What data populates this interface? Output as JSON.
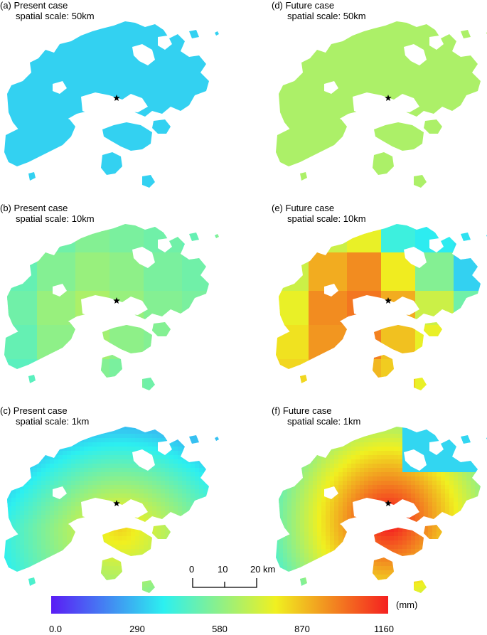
{
  "colorbar": {
    "ticks": [
      "0.0",
      "290",
      "580",
      "870",
      "1160"
    ],
    "unit": "(mm)",
    "stops": [
      "#5a1cf5",
      "#2cf0f0",
      "#f0f020",
      "#f52020"
    ],
    "min": 0,
    "max": 1160
  },
  "scalebar": {
    "labels": [
      "0",
      "10",
      "20"
    ],
    "unit": "km"
  },
  "panels": [
    {
      "id": "a",
      "title": "(a) Present case",
      "subtitle": "spatial scale: 50km",
      "value": 330,
      "mode": "uniform"
    },
    {
      "id": "d",
      "title": "(d) Future case",
      "subtitle": "spatial scale: 50km",
      "value": 640,
      "mode": "uniform"
    },
    {
      "id": "b",
      "title": "(b) Present case",
      "subtitle": "spatial scale: 10km",
      "value": 560,
      "mode": "grid10_present"
    },
    {
      "id": "e",
      "title": "(e) Future case",
      "subtitle": "spatial scale: 10km",
      "value": 900,
      "mode": "grid10_future"
    },
    {
      "id": "c",
      "title": "(c) Present case",
      "subtitle": "spatial scale: 1km",
      "value": 600,
      "mode": "grid1_present"
    },
    {
      "id": "f",
      "title": "(f) Future case",
      "subtitle": "spatial scale: 1km",
      "value": 950,
      "mode": "grid1_future"
    }
  ],
  "marker": "star-icon"
}
